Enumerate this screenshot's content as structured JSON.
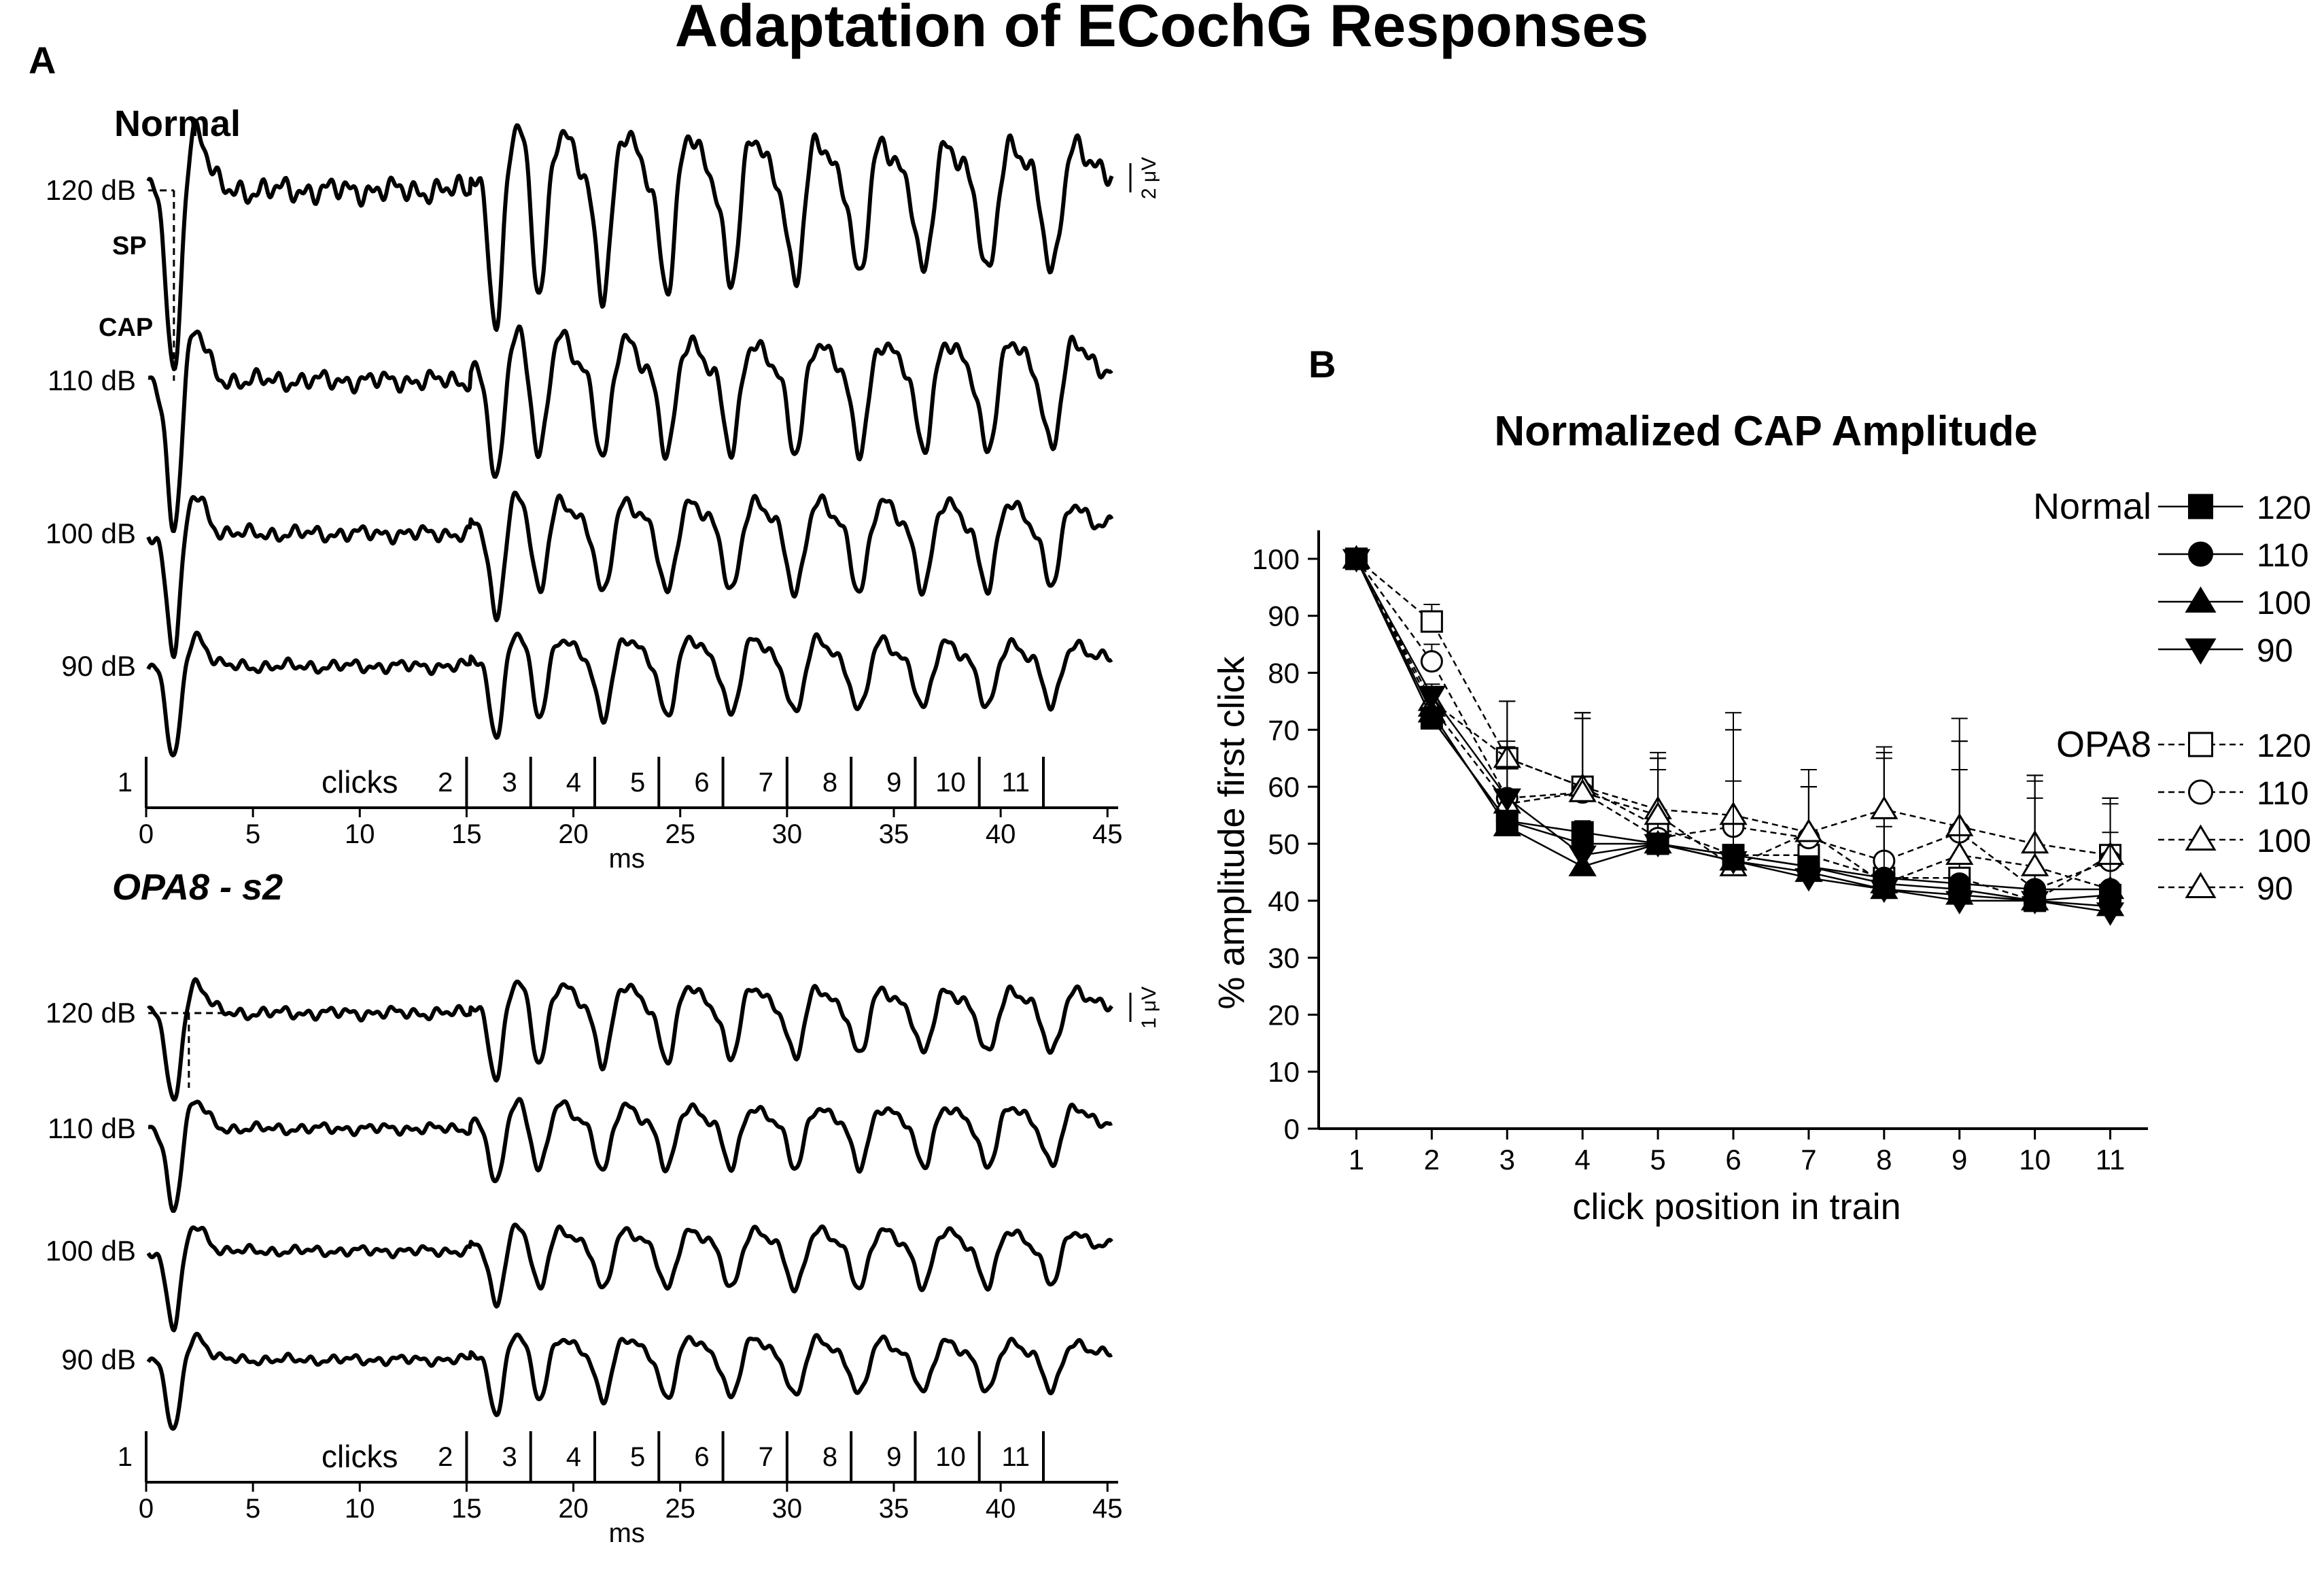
{
  "figure_title": "Adaptation of ECochG Responses",
  "panel_a": {
    "label": "A",
    "normal": {
      "title": "Normal",
      "levels": [
        "120 dB",
        "110 dB",
        "100 dB",
        "90 dB"
      ],
      "amplitudes": [
        1.0,
        0.78,
        0.62,
        0.5
      ],
      "sp_label": "SP",
      "cap_label": "CAP",
      "scale_label": "2 μV"
    },
    "opa8": {
      "title": "OPA8 - s2",
      "levels": [
        "120 dB",
        "110 dB",
        "100 dB",
        "90 dB"
      ],
      "amplitudes": [
        0.85,
        0.75,
        0.7,
        0.68
      ],
      "scale_label": "1 μV"
    },
    "click_marker_label": "clicks",
    "click_numbers": [
      "1",
      "2",
      "3",
      "4",
      "5",
      "6",
      "7",
      "8",
      "9",
      "10",
      "11"
    ],
    "click_times_ms": [
      0,
      15,
      18,
      21,
      24,
      27,
      30,
      33,
      36,
      39,
      42
    ],
    "xaxis": {
      "label": "ms",
      "ticks": [
        0,
        5,
        10,
        15,
        20,
        25,
        30,
        35,
        40,
        45
      ],
      "tick_labels": [
        "0",
        "5",
        "10",
        "15",
        "20",
        "25",
        "30",
        "35",
        "40",
        "45"
      ],
      "xlim": [
        0,
        45.5
      ]
    }
  },
  "panel_b": {
    "label": "B",
    "legend": {
      "normal_label": "Normal",
      "opa8_label": "OPA8",
      "levels": [
        "120",
        "110",
        "100",
        "90"
      ]
    }
  },
  "chart_data": {
    "type": "line",
    "title": "Normalized CAP Amplitude",
    "xlabel": "click position in train",
    "ylabel": "% amplitude first click",
    "x": [
      1,
      2,
      3,
      4,
      5,
      6,
      7,
      8,
      9,
      10,
      11
    ],
    "xlim": [
      0.5,
      11.5
    ],
    "ylim": [
      0,
      105
    ],
    "yticks": [
      0,
      10,
      20,
      30,
      40,
      50,
      60,
      70,
      80,
      90,
      100
    ],
    "series": [
      {
        "name": "Normal 120",
        "group": "Normal",
        "marker": "square",
        "filled": true,
        "dashed": false,
        "values": [
          100,
          72,
          54,
          52,
          50,
          48,
          46,
          43,
          42,
          40,
          41
        ],
        "errors": [
          0,
          1,
          1,
          2,
          1,
          1,
          1,
          1,
          1,
          1,
          1
        ]
      },
      {
        "name": "Normal 110",
        "group": "Normal",
        "marker": "circle",
        "filled": true,
        "dashed": false,
        "values": [
          100,
          72,
          54,
          50,
          50,
          48,
          46,
          44,
          43,
          42,
          42
        ],
        "errors": [
          0,
          1,
          1,
          2,
          1,
          1,
          1,
          1,
          1,
          1,
          1
        ]
      },
      {
        "name": "Normal 100",
        "group": "Normal",
        "marker": "triangle-up",
        "filled": true,
        "dashed": false,
        "values": [
          100,
          73,
          53,
          46,
          50,
          47,
          45,
          42,
          41,
          40,
          39
        ],
        "errors": [
          0,
          1,
          1,
          2,
          1,
          1,
          1,
          1,
          1,
          1,
          1
        ]
      },
      {
        "name": "Normal 90",
        "group": "Normal",
        "marker": "triangle-down",
        "filled": true,
        "dashed": false,
        "values": [
          100,
          76,
          58,
          48,
          50,
          47,
          44,
          42,
          40,
          40,
          38
        ],
        "errors": [
          0,
          1,
          1,
          2,
          1,
          1,
          1,
          1,
          1,
          1,
          1
        ]
      },
      {
        "name": "OPA8 120",
        "group": "OPA8",
        "marker": "square",
        "filled": false,
        "dashed": true,
        "values": [
          100,
          89,
          65,
          60,
          53,
          48,
          48,
          44,
          44,
          40,
          48
        ],
        "errors": [
          0,
          3,
          10,
          13,
          12,
          22,
          12,
          21,
          24,
          21,
          10
        ]
      },
      {
        "name": "OPA8 110",
        "group": "OPA8",
        "marker": "circle",
        "filled": false,
        "dashed": true,
        "values": [
          100,
          82,
          58,
          59,
          51,
          53,
          51,
          47,
          52,
          42,
          47
        ],
        "errors": [
          0,
          3,
          10,
          13,
          12,
          20,
          12,
          20,
          20,
          20,
          10
        ]
      },
      {
        "name": "OPA8 100",
        "group": "OPA8",
        "marker": "triangle-up",
        "filled": false,
        "dashed": true,
        "values": [
          100,
          75,
          65,
          60,
          56,
          55,
          52,
          56,
          53,
          50,
          48
        ],
        "errors": [
          0,
          3,
          10,
          13,
          10,
          15,
          8,
          10,
          15,
          12,
          10
        ]
      },
      {
        "name": "OPA8 90",
        "group": "OPA8",
        "marker": "triangle-up",
        "filled": false,
        "dashed": true,
        "values": [
          100,
          74,
          57,
          59,
          55,
          46,
          52,
          43,
          48,
          46,
          42
        ],
        "errors": [
          0,
          3,
          10,
          13,
          10,
          15,
          8,
          10,
          15,
          12,
          10
        ]
      }
    ]
  }
}
